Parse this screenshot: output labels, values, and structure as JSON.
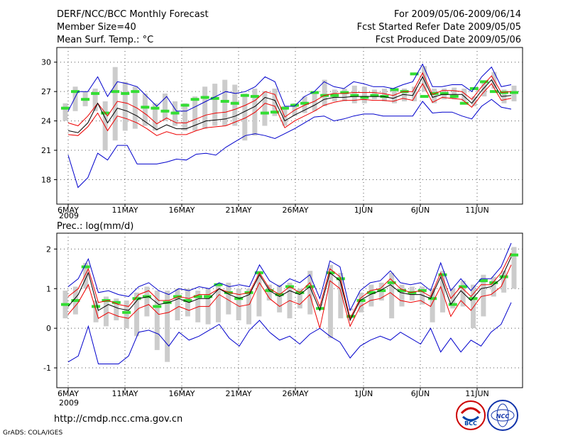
{
  "header": {
    "title": "DERF/NCC/BCC Monthly Forecast",
    "member_size": "Member Size=40",
    "variable": "Mean Surf. Temp.: °C",
    "period": "For 2009/05/06-2009/06/14",
    "started": "Fcst Started Refer Date 2009/05/05",
    "produced": "Fcst Produced Date 2009/05/06"
  },
  "x_ticks": [
    "6MAY",
    "11MAY",
    "16MAY",
    "21MAY",
    "26MAY",
    "1JUN",
    "6JUN",
    "11JUN"
  ],
  "x_tick_days": [
    0,
    5,
    10,
    15,
    20,
    26,
    31,
    36
  ],
  "year_label": "2009",
  "footer": {
    "url": "http://cmdp.ncc.cma.gov.cn",
    "grads": "GrADS: COLA/IGES",
    "logo1": "BCC",
    "logo2": "NCC"
  },
  "colors": {
    "blue": "#0000cc",
    "red": "#ee0000",
    "black": "#000000",
    "green": "#33dd33",
    "gray": "#cccccc"
  },
  "chart_data": [
    {
      "type": "line",
      "title": "Mean Surf. Temp.: °C",
      "ylabel": "°C",
      "ylim": [
        15.5,
        31.5
      ],
      "yticks": [
        18,
        21,
        24,
        27,
        30
      ],
      "days": 40,
      "series": [
        {
          "name": "max",
          "color": "blue",
          "values": [
            25.0,
            27.0,
            27.0,
            28.5,
            26.5,
            28.0,
            27.8,
            27.5,
            26.5,
            25.5,
            26.5,
            25.0,
            25.0,
            25.5,
            26.0,
            26.5,
            27.0,
            26.8,
            27.0,
            27.5,
            28.5,
            28.0,
            25.5,
            25.5,
            26.5,
            27.0,
            28.0,
            27.5,
            27.3,
            28.0,
            27.8,
            27.5,
            27.5,
            27.3,
            27.7,
            28.0,
            29.8,
            27.5,
            27.5,
            27.7,
            27.7,
            27.0,
            28.5,
            29.5,
            27.5,
            27.7
          ]
        },
        {
          "name": "p90",
          "color": "red",
          "values": [
            23.8,
            23.5,
            24.5,
            25.8,
            24.5,
            26.0,
            25.8,
            25.3,
            24.6,
            23.7,
            24.3,
            23.8,
            23.8,
            24.2,
            24.6,
            24.8,
            24.9,
            25.2,
            25.6,
            26.1,
            27.0,
            26.7,
            24.4,
            25.1,
            25.6,
            26.0,
            26.6,
            26.8,
            26.8,
            26.9,
            26.9,
            26.9,
            26.8,
            26.6,
            27.0,
            27.0,
            28.9,
            26.7,
            27.1,
            27.1,
            27.0,
            26.2,
            27.5,
            28.6,
            26.9,
            27.0
          ]
        },
        {
          "name": "mean",
          "color": "black",
          "values": [
            23.0,
            22.8,
            23.8,
            25.8,
            23.8,
            25.3,
            25.0,
            24.5,
            23.8,
            23.1,
            23.6,
            23.2,
            23.2,
            23.6,
            24.0,
            24.1,
            24.2,
            24.5,
            25.0,
            25.5,
            26.4,
            26.1,
            24.0,
            24.6,
            25.1,
            25.6,
            26.2,
            26.4,
            26.4,
            26.5,
            26.5,
            26.5,
            26.5,
            26.3,
            26.7,
            26.6,
            28.5,
            26.4,
            26.7,
            26.7,
            26.7,
            25.8,
            27.1,
            28.2,
            26.5,
            26.6
          ]
        },
        {
          "name": "p10",
          "color": "red",
          "values": [
            22.6,
            22.5,
            23.4,
            24.8,
            23.0,
            24.5,
            24.2,
            23.8,
            23.2,
            22.5,
            22.9,
            22.6,
            22.6,
            23.0,
            23.3,
            23.4,
            23.5,
            23.9,
            24.3,
            24.9,
            25.8,
            25.5,
            23.3,
            24.0,
            24.5,
            25.0,
            25.6,
            25.9,
            26.1,
            26.1,
            26.2,
            26.1,
            26.1,
            26.0,
            26.3,
            26.1,
            27.8,
            25.9,
            26.4,
            26.3,
            26.2,
            25.4,
            26.7,
            27.8,
            26.1,
            26.3
          ]
        },
        {
          "name": "min",
          "color": "blue",
          "values": [
            20.5,
            17.2,
            18.2,
            20.7,
            20.0,
            21.5,
            21.5,
            19.6,
            19.6,
            19.6,
            19.8,
            20.1,
            20.0,
            20.6,
            20.7,
            20.5,
            21.3,
            21.9,
            22.5,
            22.7,
            22.5,
            22.2,
            22.7,
            23.2,
            23.8,
            24.4,
            24.5,
            24.0,
            24.2,
            24.5,
            24.7,
            24.7,
            24.5,
            24.5,
            24.5,
            24.5,
            26.0,
            24.8,
            24.9,
            24.9,
            24.5,
            24.2,
            25.5,
            26.2,
            25.4,
            25.2
          ]
        }
      ],
      "box_low": [
        24.0,
        25.0,
        25.5,
        25.0,
        21.0,
        22.0,
        23.0,
        23.2,
        23.5,
        23.0,
        24.0,
        23.5,
        23.0,
        23.0,
        23.2,
        23.5,
        23.5,
        23.5,
        22.0,
        22.5,
        23.5,
        24.5,
        23.5,
        24.5,
        24.8,
        25.0,
        25.5,
        26.0,
        26.0,
        25.8,
        25.8,
        26.2,
        26.0,
        25.8,
        26.0,
        26.0,
        27.0,
        25.8,
        26.2,
        26.2,
        26.0,
        25.5,
        26.5,
        27.3,
        25.8,
        26.0
      ],
      "box_high": [
        25.8,
        27.5,
        27.0,
        27.3,
        26.0,
        29.5,
        28.0,
        27.5,
        26.8,
        25.8,
        26.8,
        26.0,
        25.8,
        26.5,
        27.5,
        27.8,
        28.2,
        27.7,
        26.8,
        27.3,
        27.0,
        27.3,
        25.5,
        25.8,
        26.5,
        27.0,
        28.2,
        27.2,
        27.3,
        27.6,
        27.5,
        27.2,
        27.3,
        27.3,
        27.3,
        27.5,
        29.6,
        27.3,
        27.3,
        27.4,
        27.3,
        26.5,
        28.0,
        29.0,
        27.2,
        27.6
      ],
      "green": [
        25.3,
        27.0,
        26.2,
        26.8,
        24.8,
        27.0,
        26.8,
        27.0,
        25.4,
        25.3,
        25.0,
        24.8,
        25.6,
        26.2,
        26.4,
        26.3,
        26.0,
        25.8,
        26.6,
        26.5,
        24.8,
        24.9,
        25.3,
        25.6,
        25.8,
        26.9,
        26.6,
        26.6,
        26.9,
        26.6,
        26.4,
        26.6,
        26.5,
        27.2,
        27.0,
        28.8,
        26.5,
        26.8,
        26.8,
        26.5,
        25.8,
        27.3,
        28.0,
        27.0,
        26.9,
        26.9
      ]
    },
    {
      "type": "line",
      "title": "Prec.: log(mm/d)",
      "ylabel": "log(mm/d)",
      "ylim": [
        -1.5,
        2.4
      ],
      "yticks": [
        -1,
        0,
        1,
        2
      ],
      "days": 40,
      "series": [
        {
          "name": "max",
          "color": "blue",
          "values": [
            1.05,
            1.25,
            1.75,
            0.9,
            0.95,
            0.85,
            0.8,
            1.05,
            1.15,
            0.95,
            0.85,
            1.0,
            0.95,
            1.05,
            1.0,
            1.15,
            1.05,
            1.1,
            1.05,
            1.6,
            1.2,
            1.05,
            1.25,
            1.15,
            1.35,
            0.75,
            1.7,
            1.55,
            0.45,
            0.95,
            1.15,
            1.2,
            1.45,
            1.15,
            1.1,
            1.15,
            0.95,
            1.65,
            0.95,
            1.25,
            0.95,
            1.25,
            1.25,
            1.55,
            2.15
          ]
        },
        {
          "name": "p90",
          "color": "red",
          "values": [
            0.8,
            1.0,
            1.5,
            0.65,
            0.7,
            0.6,
            0.55,
            0.85,
            0.95,
            0.7,
            0.7,
            0.8,
            0.75,
            0.85,
            0.85,
            1.0,
            0.9,
            0.85,
            0.9,
            1.4,
            1.0,
            0.85,
            1.05,
            0.9,
            1.15,
            0.55,
            1.5,
            1.3,
            0.25,
            0.75,
            0.95,
            1.0,
            1.25,
            1.0,
            0.9,
            0.95,
            0.8,
            1.4,
            0.75,
            1.05,
            0.8,
            1.1,
            1.1,
            1.4,
            1.9
          ]
        },
        {
          "name": "mean",
          "color": "black",
          "values": [
            0.55,
            0.85,
            1.4,
            0.45,
            0.6,
            0.5,
            0.45,
            0.75,
            0.8,
            0.6,
            0.65,
            0.75,
            0.65,
            0.75,
            0.75,
            1.0,
            0.85,
            0.75,
            0.85,
            1.35,
            0.95,
            0.8,
            0.95,
            0.85,
            1.05,
            0.45,
            1.4,
            1.2,
            0.2,
            0.7,
            0.85,
            0.95,
            1.1,
            0.9,
            0.85,
            0.85,
            0.75,
            1.3,
            0.6,
            0.95,
            0.7,
            1.0,
            1.05,
            1.25,
            1.8
          ]
        },
        {
          "name": "p10",
          "color": "red",
          "values": [
            0.35,
            0.65,
            1.1,
            0.25,
            0.4,
            0.3,
            0.25,
            0.5,
            0.6,
            0.35,
            0.4,
            0.55,
            0.45,
            0.55,
            0.55,
            0.85,
            0.7,
            0.55,
            0.6,
            1.15,
            0.75,
            0.55,
            0.7,
            0.6,
            0.85,
            0.0,
            1.2,
            1.0,
            0.05,
            0.55,
            0.7,
            0.75,
            0.9,
            0.7,
            0.65,
            0.7,
            0.55,
            1.05,
            0.3,
            0.7,
            0.45,
            0.8,
            0.85,
            1.05,
            1.6
          ]
        },
        {
          "name": "min",
          "color": "blue",
          "values": [
            -0.85,
            -0.7,
            0.05,
            -0.9,
            -0.9,
            -0.9,
            -0.7,
            -0.1,
            -0.05,
            -0.15,
            -0.45,
            -0.1,
            -0.3,
            -0.2,
            -0.05,
            0.1,
            -0.25,
            -0.45,
            -0.05,
            0.2,
            -0.1,
            -0.3,
            -0.2,
            -0.4,
            -0.15,
            0.0,
            -0.2,
            -0.35,
            -0.75,
            -0.45,
            -0.3,
            -0.2,
            -0.3,
            -0.1,
            -0.25,
            -0.4,
            0.0,
            -0.6,
            -0.25,
            -0.6,
            -0.3,
            -0.45,
            -0.1,
            0.1,
            0.65
          ]
        },
        {
          "name": "green",
          "color": "green",
          "values": [
            0.6,
            0.7,
            1.55,
            0.55,
            0.7,
            0.65,
            0.4,
            0.75,
            0.8,
            0.55,
            0.65,
            0.8,
            0.7,
            0.8,
            0.8,
            1.1,
            0.9,
            0.75,
            0.9,
            1.4,
            0.95,
            0.85,
            1.05,
            0.9,
            1.05,
            0.5,
            1.4,
            1.25,
            0.3,
            0.7,
            0.9,
            0.95,
            1.15,
            0.95,
            0.9,
            0.95,
            0.75,
            1.35,
            0.6,
            1.05,
            0.75,
            1.2,
            1.15,
            1.3,
            1.85
          ]
        }
      ],
      "box_low": [
        0.25,
        0.35,
        1.0,
        0.15,
        0.05,
        0.2,
        0.0,
        -0.2,
        0.3,
        -0.55,
        -0.85,
        0.2,
        0.3,
        0.15,
        0.1,
        0.15,
        0.35,
        0.2,
        0.1,
        0.3,
        0.7,
        0.4,
        0.25,
        0.5,
        0.35,
        0.7,
        -0.25,
        0.25,
        0.45,
        0.4,
        0.55,
        0.7,
        0.25,
        0.55,
        0.7,
        0.6,
        0.15,
        0.4,
        0.5,
        0.55,
        0.0,
        0.3,
        0.8,
        0.9,
        1.0
      ],
      "box_high": [
        0.95,
        1.05,
        1.65,
        0.7,
        0.8,
        0.75,
        0.7,
        0.9,
        1.05,
        0.95,
        0.95,
        1.0,
        1.0,
        0.95,
        1.0,
        1.1,
        1.15,
        1.0,
        1.0,
        1.45,
        1.1,
        1.1,
        1.15,
        1.0,
        1.45,
        0.6,
        1.6,
        1.4,
        0.5,
        0.9,
        1.1,
        1.15,
        1.4,
        1.1,
        1.05,
        1.05,
        1.0,
        1.45,
        1.0,
        1.2,
        1.1,
        1.35,
        1.3,
        1.45,
        2.05
      ]
    }
  ]
}
